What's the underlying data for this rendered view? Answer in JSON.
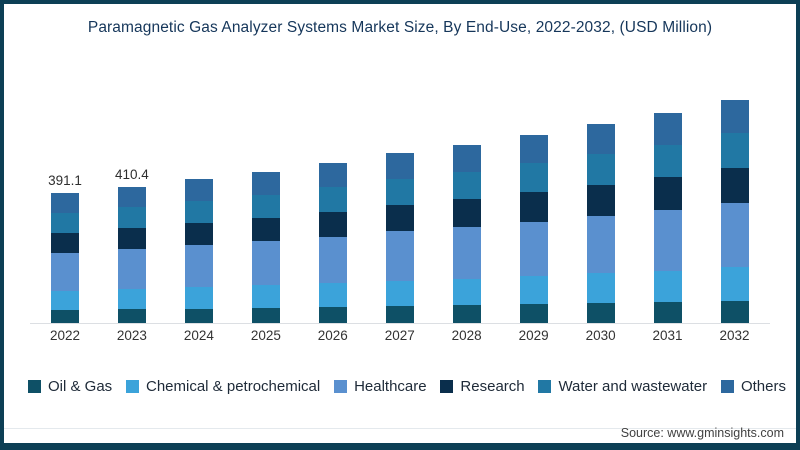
{
  "title": "Paramagnetic Gas Analyzer Systems Market Size, By End-Use, 2022-2032, (USD Million)",
  "source": "Source: www.gminsights.com",
  "frame_border_color": "#0d3f55",
  "chart_data": {
    "type": "bar",
    "stacked": true,
    "title": "Paramagnetic Gas Analyzer Systems Market Size, By End-Use, 2022-2032, (USD Million)",
    "xlabel": "",
    "ylabel": "USD Million",
    "ylim": [
      0,
      700
    ],
    "grid": false,
    "legend_position": "bottom",
    "categories": [
      "2022",
      "2023",
      "2024",
      "2025",
      "2026",
      "2027",
      "2028",
      "2029",
      "2030",
      "2031",
      "2032"
    ],
    "series": [
      {
        "name": "Oil & Gas",
        "color": "#0e5066",
        "values": [
          39.1,
          41.0,
          43.3,
          45.5,
          48.1,
          51.1,
          53.6,
          56.5,
          59.9,
          63.2,
          67.1
        ]
      },
      {
        "name": "Chemical & petrochemical",
        "color": "#3ba3da",
        "values": [
          58.7,
          61.6,
          65.0,
          68.3,
          72.1,
          76.6,
          80.4,
          84.8,
          89.8,
          94.8,
          100.6
        ]
      },
      {
        "name": "Healthcare",
        "color": "#5a90cf",
        "values": [
          113.4,
          119.0,
          125.6,
          132.0,
          139.3,
          148.1,
          155.4,
          163.9,
          173.6,
          183.2,
          194.5
        ]
      },
      {
        "name": "Research",
        "color": "#0a2e4c",
        "values": [
          60.6,
          63.6,
          67.1,
          70.5,
          74.5,
          79.2,
          83.1,
          87.6,
          92.8,
          97.9,
          104.0
        ]
      },
      {
        "name": "Water and wastewater",
        "color": "#2178a4",
        "values": [
          60.6,
          63.6,
          67.1,
          70.5,
          74.5,
          79.2,
          83.1,
          87.6,
          92.8,
          97.9,
          104.0
        ]
      },
      {
        "name": "Others",
        "color": "#2d689e",
        "values": [
          58.7,
          61.6,
          65.1,
          68.2,
          72.0,
          76.6,
          80.4,
          84.9,
          89.7,
          94.7,
          100.6
        ]
      }
    ],
    "totals": [
      391.1,
      410.4,
      433.2,
      455.0,
      480.5,
      510.8,
      536.0,
      565.3,
      598.6,
      631.7,
      670.8
    ],
    "data_labels": {
      "2022": "391.1",
      "2023": "410.4"
    }
  }
}
